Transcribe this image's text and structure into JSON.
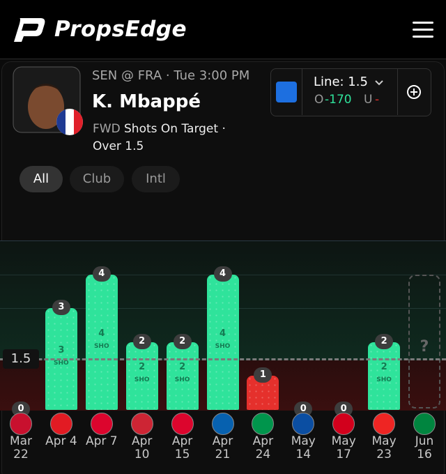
{
  "header": {
    "brand": "PropsEdge"
  },
  "player": {
    "matchup": "SEN @ FRA · Tue 3:00 PM",
    "name": "K. Mbappé",
    "position": "FWD",
    "stat": "Shots On Target ·",
    "pick": "Over 1.5"
  },
  "odds": {
    "line": "Line: 1.5",
    "over": "O",
    "over_odds": "-170",
    "under": "U",
    "under_odds": "-"
  },
  "tabs": [
    "All",
    "Club",
    "Intl"
  ],
  "chart_data": {
    "type": "bar",
    "categories": [
      "Mar 22",
      "Apr 4",
      "Apr 7",
      "Apr 10",
      "Apr 15",
      "Apr 21",
      "Apr 24",
      "May 14",
      "May 17",
      "May 23",
      "Jun 16"
    ],
    "values": [
      0,
      3,
      4,
      2,
      2,
      4,
      1,
      0,
      0,
      2,
      null
    ],
    "unit_label": "SHO",
    "pending_label": "?",
    "threshold": 1.5,
    "ylim": [
      0,
      5
    ],
    "over_color": "#2fe39b",
    "under_color": "#e5302c"
  }
}
